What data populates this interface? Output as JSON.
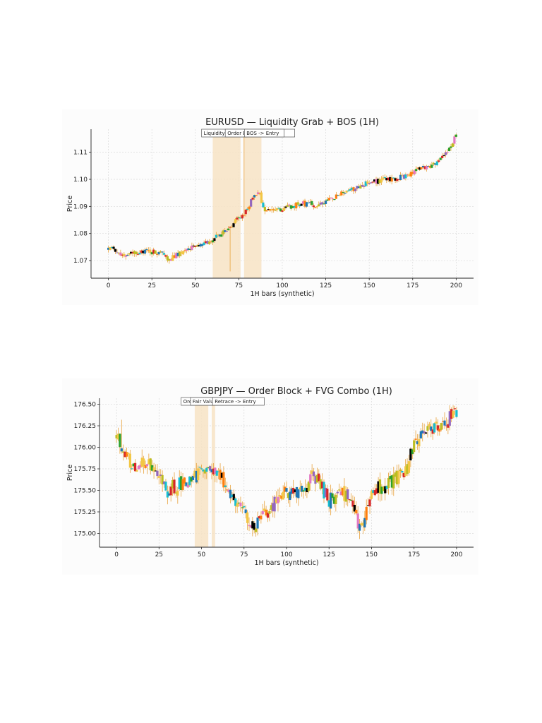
{
  "colors": {
    "zone_fill": "#f7e3c4",
    "wick": "#e8a33d",
    "grid": "#d9d9d9",
    "axis": "#222222",
    "candle_palette": [
      "#1f77b4",
      "#ff7f0e",
      "#2ca02c",
      "#d62728",
      "#9467bd",
      "#e377c2",
      "#17becf",
      "#bcbd22",
      "#000000",
      "#f2c744"
    ]
  },
  "chart_data": [
    {
      "type": "candlestick",
      "title": "EURUSD — Liquidity Grab + BOS (1H)",
      "xlabel": "1H bars (synthetic)",
      "ylabel": "Price",
      "xlim": [
        -10,
        210
      ],
      "ylim": [
        1.0635,
        1.1185
      ],
      "xticks": [
        0,
        25,
        50,
        75,
        100,
        125,
        150,
        175,
        200
      ],
      "yticks": [
        {
          "value": 1.07,
          "label": "1.07"
        },
        {
          "value": 1.08,
          "label": "1.08"
        },
        {
          "value": 1.09,
          "label": "1.09"
        },
        {
          "value": 1.1,
          "label": "1.10"
        },
        {
          "value": 1.11,
          "label": "1.11"
        }
      ],
      "grid": true,
      "zones": [
        {
          "x0": 60,
          "x1": 76
        },
        {
          "x0": 78,
          "x1": 88
        }
      ],
      "annotations": [
        {
          "label": "Liquidity zone",
          "x": 53.6
        },
        {
          "label": "Order Block entry area",
          "x": 67.2
        },
        {
          "label": "BOS -> Entry",
          "x": 78.2
        }
      ],
      "close_anchors": [
        [
          0,
          1.0745
        ],
        [
          10,
          1.072
        ],
        [
          20,
          1.0735
        ],
        [
          30,
          1.073
        ],
        [
          35,
          1.0705
        ],
        [
          45,
          1.074
        ],
        [
          55,
          1.076
        ],
        [
          65,
          1.08
        ],
        [
          72,
          1.084
        ],
        [
          78,
          1.0875
        ],
        [
          86,
          1.096
        ],
        [
          90,
          1.088
        ],
        [
          100,
          1.089
        ],
        [
          110,
          1.091
        ],
        [
          120,
          1.0905
        ],
        [
          130,
          1.0935
        ],
        [
          140,
          1.096
        ],
        [
          150,
          1.099
        ],
        [
          160,
          1.1
        ],
        [
          170,
          1.101
        ],
        [
          180,
          1.1045
        ],
        [
          190,
          1.106
        ],
        [
          200,
          1.116
        ]
      ],
      "noise": 0.001,
      "seed": 7,
      "wick_events": [
        {
          "x": 70,
          "low": 1.066
        },
        {
          "x": 78,
          "high": 1.117
        }
      ]
    },
    {
      "type": "candlestick",
      "title": "GBPJPY — Order Block + FVG Combo (1H)",
      "xlabel": "1H bars (synthetic)",
      "ylabel": "Price",
      "xlim": [
        -10,
        210
      ],
      "ylim": [
        174.84,
        176.57
      ],
      "xticks": [
        0,
        25,
        50,
        75,
        100,
        125,
        150,
        175,
        200
      ],
      "yticks": [
        {
          "value": 175.0,
          "label": "175.00"
        },
        {
          "value": 175.25,
          "label": "175.25"
        },
        {
          "value": 175.5,
          "label": "175.50"
        },
        {
          "value": 175.75,
          "label": "175.75"
        },
        {
          "value": 176.0,
          "label": "176.00"
        },
        {
          "value": 176.25,
          "label": "176.25"
        },
        {
          "value": 176.5,
          "label": "176.50"
        }
      ],
      "grid": true,
      "zones": [
        {
          "x0": 46,
          "x1": 54
        },
        {
          "x0": 56,
          "x1": 58
        }
      ],
      "annotations": [
        {
          "label": "Order Block",
          "x": 38
        },
        {
          "label": "Fair Value Gap (FVG)",
          "x": 43.5
        },
        {
          "label": "Retrace -> Entry",
          "x": 56.5
        }
      ],
      "close_anchors": [
        [
          0,
          176.15
        ],
        [
          5,
          175.9
        ],
        [
          10,
          175.8
        ],
        [
          20,
          175.8
        ],
        [
          30,
          175.5
        ],
        [
          40,
          175.6
        ],
        [
          50,
          175.7
        ],
        [
          60,
          175.7
        ],
        [
          70,
          175.4
        ],
        [
          80,
          175.1
        ],
        [
          90,
          175.3
        ],
        [
          100,
          175.5
        ],
        [
          110,
          175.45
        ],
        [
          115,
          175.7
        ],
        [
          125,
          175.4
        ],
        [
          135,
          175.45
        ],
        [
          140,
          175.3
        ],
        [
          143,
          175.05
        ],
        [
          150,
          175.5
        ],
        [
          160,
          175.6
        ],
        [
          170,
          175.7
        ],
        [
          175,
          176.05
        ],
        [
          185,
          176.2
        ],
        [
          195,
          176.35
        ],
        [
          200,
          176.42
        ]
      ],
      "noise": 0.09,
      "seed": 23,
      "wick_events": [
        {
          "x": 3,
          "high": 176.32
        }
      ]
    }
  ]
}
